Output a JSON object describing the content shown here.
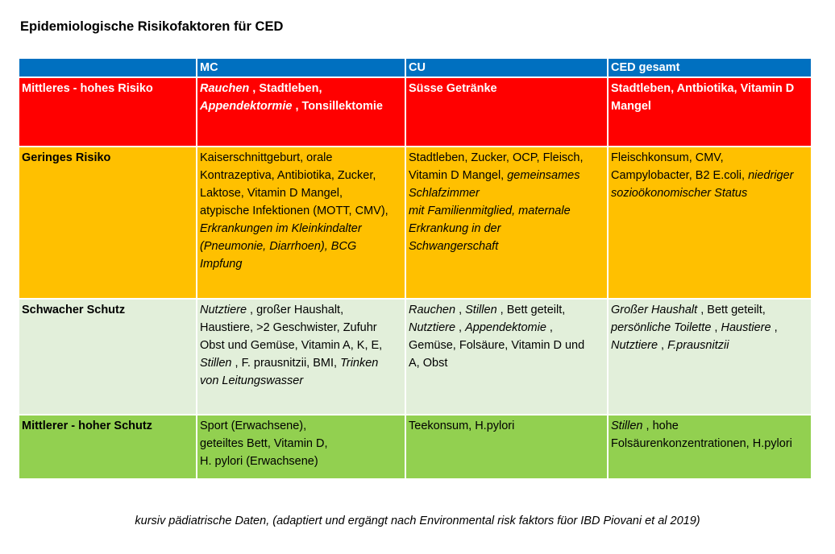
{
  "title": "Epidemiologische Risikofaktoren für CED",
  "header": [
    "",
    "MC",
    "CU",
    "CED gesamt"
  ],
  "rows": [
    {
      "label": "Mittleres - hohes Risiko",
      "cells": [
        [
          [
            {
              "t": "Rauchen",
              "i": true
            },
            {
              "t": " , Stadtleben,",
              "i": false
            }
          ],
          [
            {
              "t": "Appendektormie",
              "i": true
            },
            {
              "t": " , Tonsillektomie",
              "i": false
            }
          ]
        ],
        [
          [
            {
              "t": "Süsse Getränke",
              "i": false
            }
          ]
        ],
        [
          [
            {
              "t": "Stadtleben, Antbiotika, Vitamin D",
              "i": false
            }
          ],
          [
            {
              "t": "Mangel",
              "i": false
            }
          ]
        ]
      ]
    },
    {
      "label": "Geringes Risiko",
      "cells": [
        [
          [
            {
              "t": "Kaiserschnittgeburt, orale",
              "i": false
            }
          ],
          [
            {
              "t": "Kontrazeptiva, Antibiotika, Zucker,",
              "i": false
            }
          ],
          [
            {
              "t": "Laktose, Vitamin D Mangel,",
              "i": false
            }
          ],
          [
            {
              "t": "atypische Infektionen (MOTT, CMV),",
              "i": false
            }
          ],
          [
            {
              "t": "Erkrankungen im Kleinkindalter",
              "i": true
            }
          ],
          [
            {
              "t": "(Pneumonie, Diarrhoen), BCG",
              "i": true
            }
          ],
          [
            {
              "t": "Impfung",
              "i": true
            }
          ]
        ],
        [
          [
            {
              "t": "Stadtleben, Zucker, OCP, Fleisch,",
              "i": false
            }
          ],
          [
            {
              "t": "Vitamin D Mangel, ",
              "i": false
            },
            {
              "t": "gemeinsames",
              "i": true
            }
          ],
          [
            {
              "t": "Schlafzimmer",
              "i": true
            }
          ],
          [
            {
              "t": "mit Familienmitglied, maternale",
              "i": true
            }
          ],
          [
            {
              "t": "Erkrankung in der",
              "i": true
            }
          ],
          [
            {
              "t": "Schwangerschaft",
              "i": true
            }
          ]
        ],
        [
          [
            {
              "t": "Fleischkonsum, CMV,",
              "i": false
            }
          ],
          [
            {
              "t": "Campylobacter, B2 E.coli, ",
              "i": false
            },
            {
              "t": "niedriger",
              "i": true
            }
          ],
          [
            {
              "t": "sozioökonomischer Status",
              "i": true
            }
          ]
        ]
      ]
    },
    {
      "label": "Schwacher Schutz",
      "cells": [
        [
          [
            {
              "t": "Nutztiere",
              "i": true
            },
            {
              "t": " , großer Haushalt,",
              "i": false
            }
          ],
          [
            {
              "t": "Haustiere, >2 Geschwister, Zufuhr",
              "i": false
            }
          ],
          [
            {
              "t": "Obst und Gemüse, Vitamin A, K, E,",
              "i": false
            }
          ],
          [
            {
              "t": "Stillen",
              "i": true
            },
            {
              "t": " , F. prausnitzii, BMI, ",
              "i": false
            },
            {
              "t": "Trinken",
              "i": true
            }
          ],
          [
            {
              "t": "von Leitungswasser",
              "i": true
            }
          ]
        ],
        [
          [
            {
              "t": "Rauchen",
              "i": true
            },
            {
              "t": " , ",
              "i": false
            },
            {
              "t": "Stillen",
              "i": true
            },
            {
              "t": " , Bett geteilt,",
              "i": false
            }
          ],
          [
            {
              "t": "Nutztiere",
              "i": true
            },
            {
              "t": " , ",
              "i": false
            },
            {
              "t": "Appendektomie",
              "i": true
            },
            {
              "t": " ,",
              "i": false
            }
          ],
          [
            {
              "t": "Gemüse, Folsäure, Vitamin D und",
              "i": false
            }
          ],
          [
            {
              "t": "A, Obst",
              "i": false
            }
          ]
        ],
        [
          [
            {
              "t": "Großer Haushalt",
              "i": true
            },
            {
              "t": " , Bett geteilt,",
              "i": false
            }
          ],
          [
            {
              "t": "persönliche Toilette",
              "i": true
            },
            {
              "t": " , ",
              "i": false
            },
            {
              "t": "Haustiere",
              "i": true
            },
            {
              "t": " ,",
              "i": false
            }
          ],
          [
            {
              "t": "Nutztiere",
              "i": true
            },
            {
              "t": " , ",
              "i": false
            },
            {
              "t": "F.prausnitzii",
              "i": true
            }
          ]
        ]
      ]
    },
    {
      "label": "Mittlerer - hoher Schutz",
      "cells": [
        [
          [
            {
              "t": "Sport (Erwachsene),",
              "i": false
            }
          ],
          [
            {
              "t": "geteiltes Bett, Vitamin D,",
              "i": false
            }
          ],
          [
            {
              "t": "H. pylori (Erwachsene)",
              "i": false
            }
          ]
        ],
        [
          [
            {
              "t": "Teekonsum, H.pylori",
              "i": false
            }
          ]
        ],
        [
          [
            {
              "t": "Stillen",
              "i": true
            },
            {
              "t": " , hohe",
              "i": false
            }
          ],
          [
            {
              "t": "Folsäurenkonzentrationen, H.pylori",
              "i": false
            }
          ]
        ]
      ]
    }
  ],
  "footer": "kursiv pädiatrische Daten, (adaptiert und ergängt nach Environmental risk faktors füor IBD Piovani et al 2019)"
}
